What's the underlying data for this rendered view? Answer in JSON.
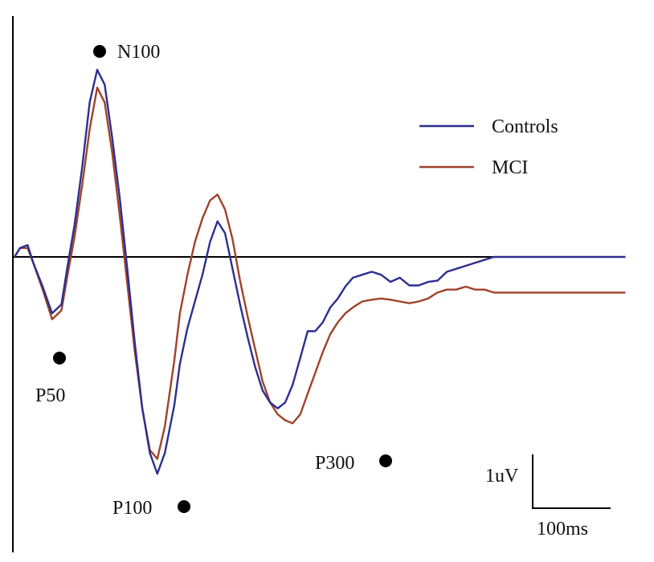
{
  "chart_data": {
    "type": "line",
    "title": "",
    "xlabel": "",
    "ylabel": "",
    "x_unit": "ms",
    "y_unit": "uV",
    "xlim": [
      0,
      325
    ],
    "ylim": [
      -4.5,
      3.25
    ],
    "legend": {
      "placement": "top-right"
    },
    "grid": false,
    "series": [
      {
        "name": "Controls",
        "color": "#2b2f8f",
        "x": [
          0,
          3,
          7,
          10,
          15,
          20,
          25,
          28,
          32,
          36,
          40,
          44,
          48,
          52,
          56,
          60,
          64,
          68,
          72,
          76,
          80,
          85,
          88,
          92,
          96,
          100,
          104,
          108,
          112,
          116,
          120,
          124,
          128,
          132,
          136,
          140,
          144,
          148,
          152,
          156,
          160,
          164,
          168,
          172,
          176,
          180,
          185,
          190,
          195,
          200,
          205,
          210,
          215,
          220,
          225,
          230,
          235,
          240,
          245,
          250,
          255,
          260,
          265,
          270,
          275,
          280,
          285,
          290,
          295,
          300,
          305,
          310,
          315,
          320,
          325
        ],
        "y": [
          0.0,
          0.15,
          0.2,
          -0.1,
          -0.5,
          -0.95,
          -0.8,
          -0.2,
          0.55,
          1.5,
          2.6,
          3.15,
          2.9,
          2.0,
          1.0,
          -0.2,
          -1.45,
          -2.55,
          -3.3,
          -3.65,
          -3.3,
          -2.5,
          -1.8,
          -1.2,
          -0.75,
          -0.3,
          0.25,
          0.6,
          0.4,
          -0.2,
          -0.8,
          -1.35,
          -1.85,
          -2.25,
          -2.45,
          -2.55,
          -2.45,
          -2.15,
          -1.7,
          -1.25,
          -1.25,
          -1.1,
          -0.85,
          -0.7,
          -0.5,
          -0.35,
          -0.3,
          -0.25,
          -0.3,
          -0.42,
          -0.35,
          -0.48,
          -0.48,
          -0.42,
          -0.4,
          -0.25,
          -0.2,
          -0.15,
          -0.1,
          -0.05,
          0.0,
          0.0,
          0.0,
          0.0,
          0.0,
          0.0,
          0.0,
          0.0,
          0.0,
          0.0,
          0.0,
          0.0,
          0.0,
          0.0,
          0.0
        ]
      },
      {
        "name": "MCI",
        "color": "#a0422b",
        "x": [
          0,
          3,
          7,
          10,
          15,
          20,
          25,
          28,
          32,
          36,
          40,
          44,
          48,
          52,
          56,
          60,
          64,
          68,
          72,
          76,
          80,
          85,
          88,
          92,
          96,
          100,
          104,
          108,
          112,
          116,
          120,
          124,
          128,
          132,
          136,
          140,
          144,
          148,
          152,
          156,
          160,
          164,
          168,
          172,
          176,
          180,
          185,
          190,
          195,
          200,
          205,
          210,
          215,
          220,
          225,
          230,
          235,
          240,
          245,
          250,
          255,
          260,
          265,
          270,
          275,
          280,
          285,
          290,
          295,
          300,
          305,
          310,
          315,
          320,
          325
        ],
        "y": [
          0.0,
          0.15,
          0.15,
          -0.1,
          -0.55,
          -1.05,
          -0.9,
          -0.35,
          0.35,
          1.2,
          2.15,
          2.85,
          2.6,
          1.75,
          0.7,
          -0.45,
          -1.6,
          -2.55,
          -3.25,
          -3.4,
          -2.85,
          -1.75,
          -0.95,
          -0.3,
          0.25,
          0.65,
          0.95,
          1.05,
          0.8,
          0.3,
          -0.4,
          -1.0,
          -1.55,
          -2.1,
          -2.45,
          -2.65,
          -2.75,
          -2.8,
          -2.65,
          -2.3,
          -1.95,
          -1.6,
          -1.3,
          -1.1,
          -0.95,
          -0.85,
          -0.75,
          -0.72,
          -0.7,
          -0.72,
          -0.75,
          -0.78,
          -0.75,
          -0.7,
          -0.6,
          -0.55,
          -0.55,
          -0.5,
          -0.55,
          -0.55,
          -0.6,
          -0.6,
          -0.6,
          -0.6,
          -0.6,
          -0.6,
          -0.6,
          -0.6,
          -0.6,
          -0.6,
          -0.6,
          -0.6,
          -0.6,
          -0.6,
          -0.6
        ]
      }
    ],
    "annotations": [
      {
        "label": "N100",
        "x": 45,
        "y": 3.15
      },
      {
        "label": "P50",
        "x": 24,
        "y": -0.95
      },
      {
        "label": "P100",
        "x": 76,
        "y": -3.65
      },
      {
        "label": "P300",
        "x": 192,
        "y": -2.8
      }
    ],
    "scale_bar": {
      "x_label": "100ms",
      "y_label": "1uV",
      "x_value": 100,
      "y_value": 1
    }
  }
}
